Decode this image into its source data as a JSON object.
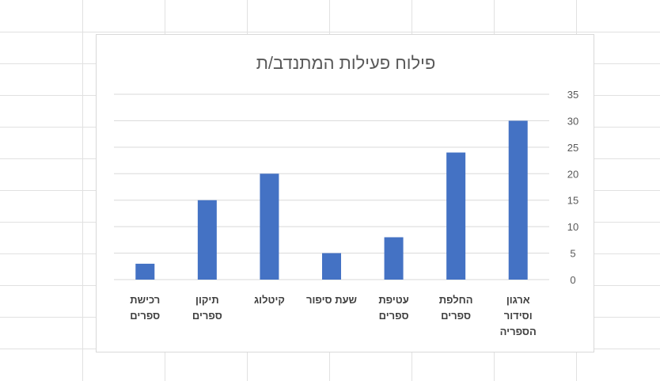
{
  "chart_data": {
    "type": "bar",
    "title": "פילוח פעילות המתנדב/ת",
    "categories": [
      [
        "ארגון",
        "וסידור",
        "הספריה"
      ],
      [
        "החלפת",
        "ספרים"
      ],
      [
        "עטיפת",
        "ספרים"
      ],
      [
        "שעת סיפור"
      ],
      [
        "קיטלוג"
      ],
      [
        "תיקון",
        "ספרים"
      ],
      [
        "רכישת",
        "ספרים"
      ]
    ],
    "values": [
      30,
      24,
      8,
      5,
      20,
      15,
      3
    ],
    "ylim": [
      0,
      35
    ],
    "yticks": [
      0,
      5,
      10,
      15,
      20,
      25,
      30,
      35
    ],
    "xlabel": "",
    "ylabel": "",
    "grid": true,
    "axis_position": "right",
    "legend": "none",
    "bar_color": "#4472C4",
    "gridline_color": "#d9d9d9",
    "text_color": "#595959"
  }
}
